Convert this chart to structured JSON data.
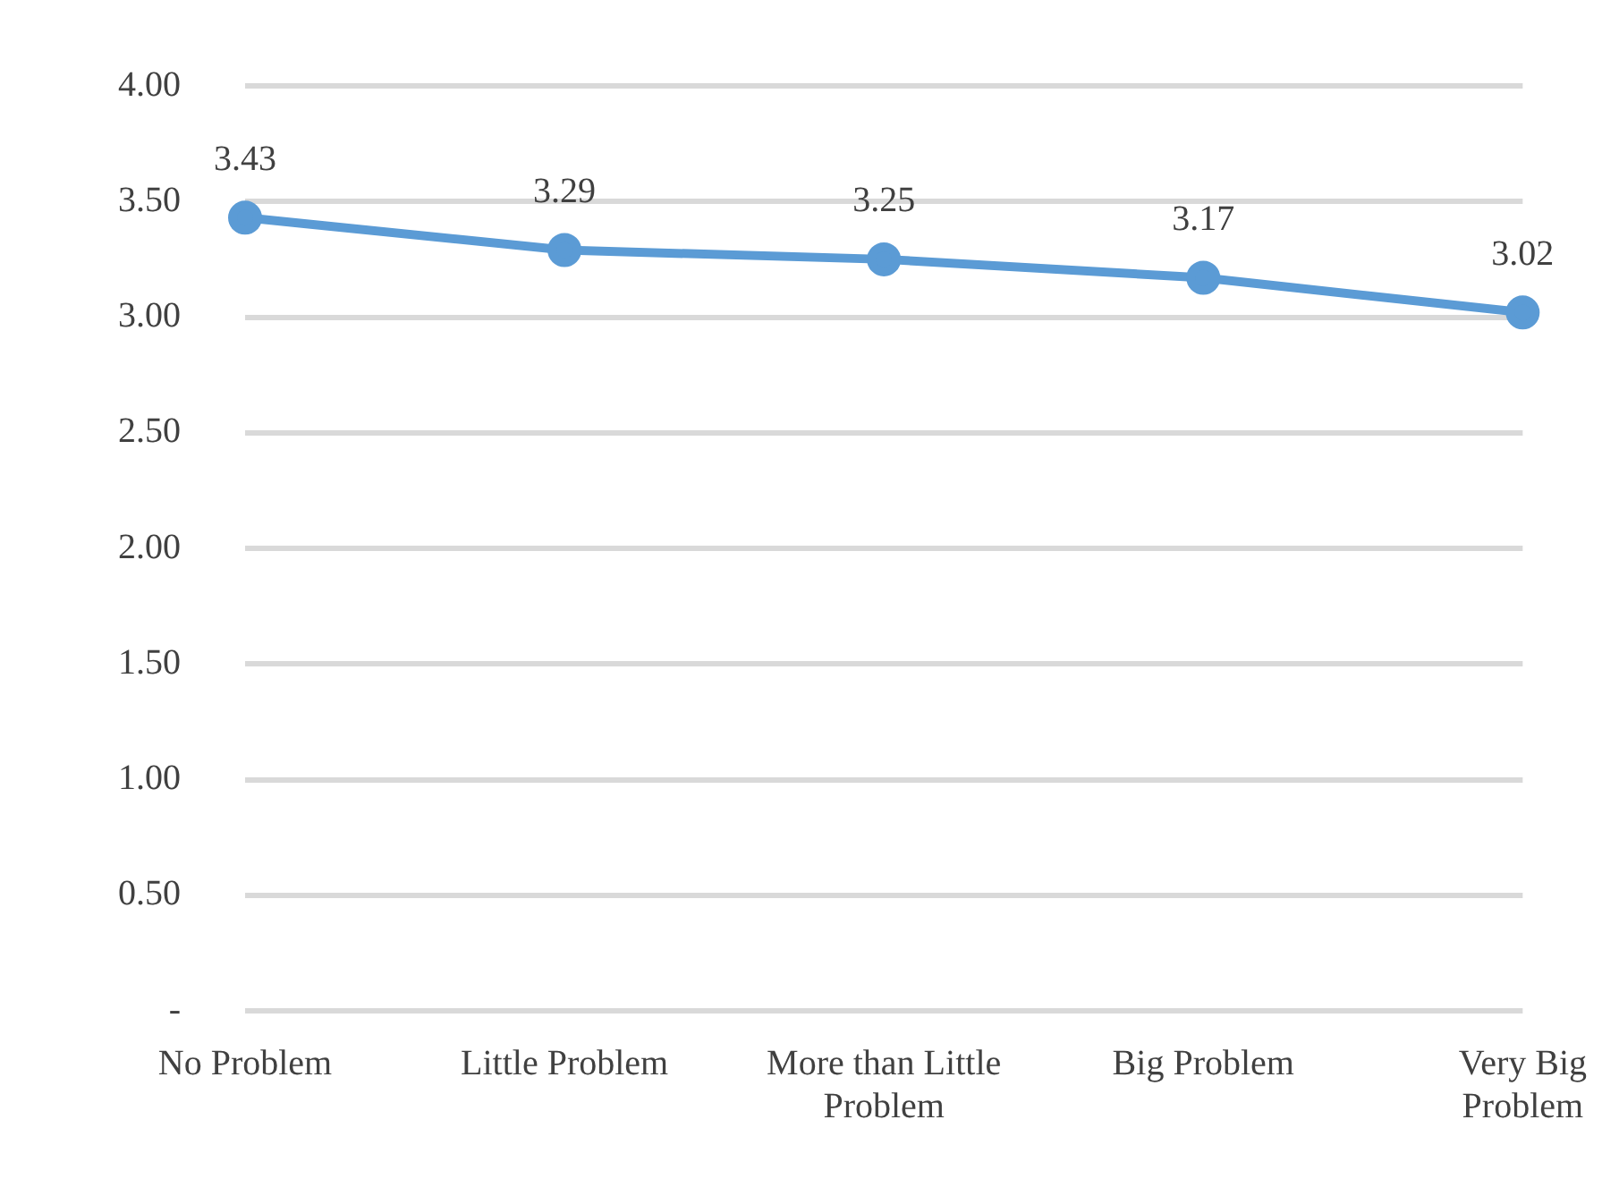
{
  "chart_data": {
    "type": "line",
    "categories": [
      "No Problem",
      "Little Problem",
      "More than Little Problem",
      "Big Problem",
      "Very Big Problem"
    ],
    "series": [
      {
        "color": "#5b9bd5",
        "values": [
          3.43,
          3.29,
          3.25,
          3.17,
          3.02
        ]
      }
    ],
    "ylim": [
      0,
      4
    ],
    "yticks": [
      {
        "value": 0,
        "label": "-"
      },
      {
        "value": 0.5,
        "label": "0.50"
      },
      {
        "value": 1,
        "label": "1.00"
      },
      {
        "value": 1.5,
        "label": "1.50"
      },
      {
        "value": 2,
        "label": "2.00"
      },
      {
        "value": 2.5,
        "label": "2.50"
      },
      {
        "value": 3,
        "label": "3.00"
      },
      {
        "value": 3.5,
        "label": "3.50"
      },
      {
        "value": 4,
        "label": "4.00"
      }
    ],
    "grid": "y",
    "legend": false,
    "marker": "circle",
    "line_style": "solid",
    "data_labels": true
  }
}
